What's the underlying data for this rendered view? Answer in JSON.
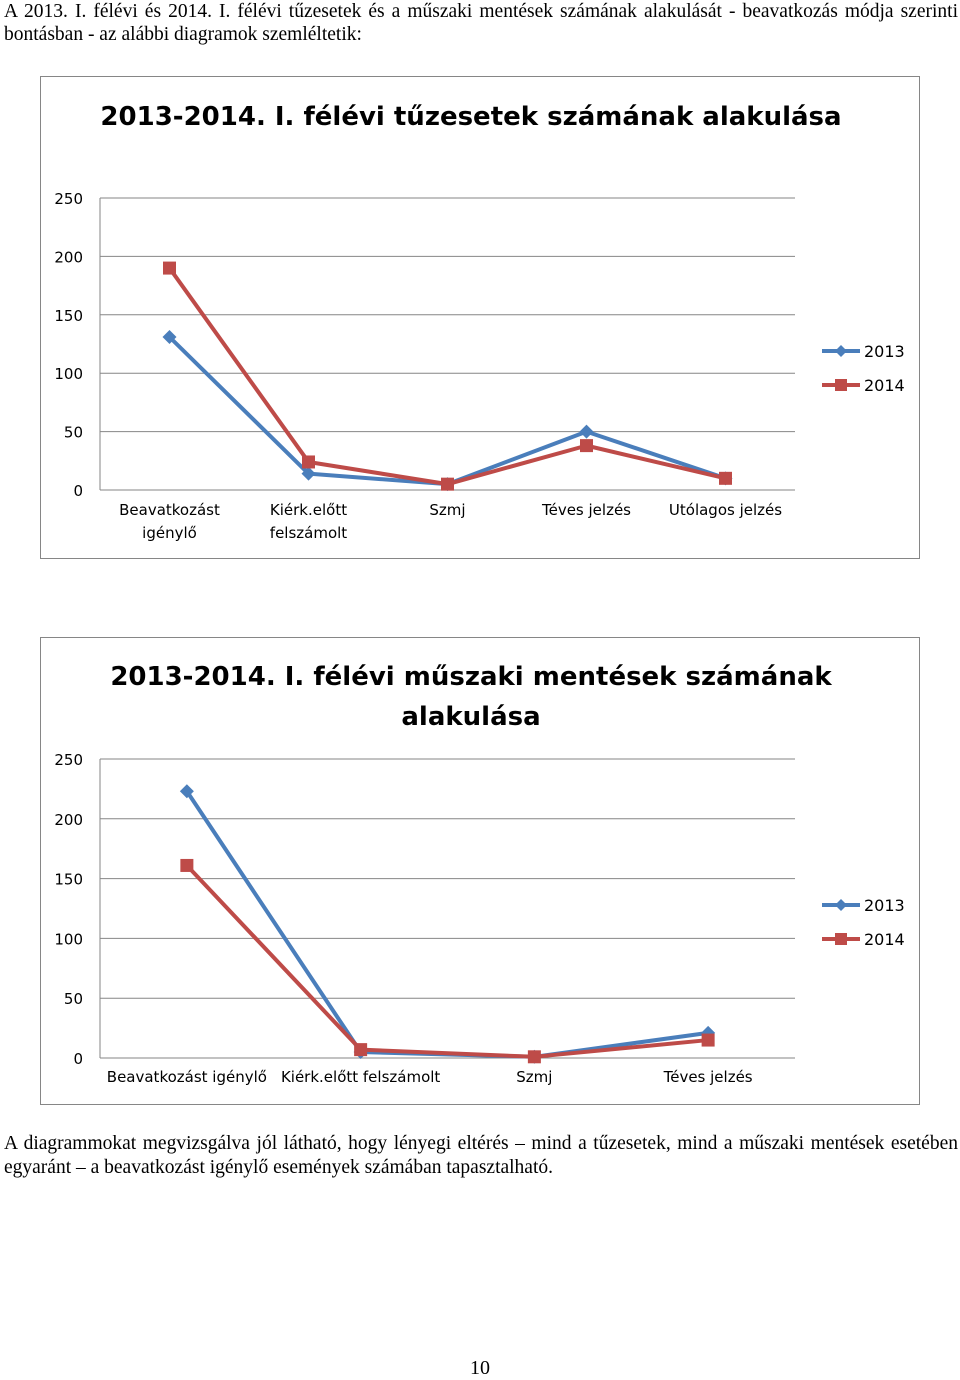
{
  "document": {
    "intro": "A 2013. I. félévi és 2014. I. félévi tűzesetek és a műszaki mentések számának alakulását - beavatkozás módja szerinti bontásban - az alábbi diagramok szemléltetik:",
    "conclusion": "A diagrammokat megvizsgálva jól látható, hogy lényegi eltérés – mind a tűzesetek, mind a műszaki mentések esetében egyaránt – a beavatkozást igénylő események számában tapasztalható.",
    "page_number": "10"
  },
  "colors": {
    "series_2013": "#4a7ebb",
    "series_2014": "#be4b48",
    "gridline": "#868686"
  },
  "chart_data": [
    {
      "type": "line",
      "title": "2013-2014. I. félévi tűzesetek számának alakulása",
      "categories": [
        [
          "Beavatkozást",
          "igénylő"
        ],
        [
          "Kiérk.előtt",
          "felszámolt"
        ],
        [
          "Szmj"
        ],
        [
          "Téves jelzés"
        ],
        [
          "Utólagos jelzés"
        ]
      ],
      "ylim": [
        0,
        250
      ],
      "yticks": [
        "0",
        "50",
        "100",
        "150",
        "200",
        "250"
      ],
      "grid": true,
      "legend": "right",
      "series": [
        {
          "name": "2013",
          "marker": "diamond",
          "values": [
            131,
            14,
            5,
            50,
            10
          ]
        },
        {
          "name": "2014",
          "marker": "square",
          "values": [
            190,
            24,
            5,
            38,
            10
          ]
        }
      ]
    },
    {
      "type": "line",
      "title": "2013-2014. I. félévi műszaki mentések számának alakulása",
      "categories": [
        [
          "Beavatkozást igénylő"
        ],
        [
          "Kiérk.előtt felszámolt"
        ],
        [
          "Szmj"
        ],
        [
          "Téves jelzés"
        ]
      ],
      "ylim": [
        0,
        250
      ],
      "yticks": [
        "0",
        "50",
        "100",
        "150",
        "200",
        "250"
      ],
      "grid": true,
      "legend": "right",
      "series": [
        {
          "name": "2013",
          "marker": "diamond",
          "values": [
            223,
            5,
            1,
            21
          ]
        },
        {
          "name": "2014",
          "marker": "square",
          "values": [
            161,
            7,
            1,
            15
          ]
        }
      ]
    }
  ]
}
